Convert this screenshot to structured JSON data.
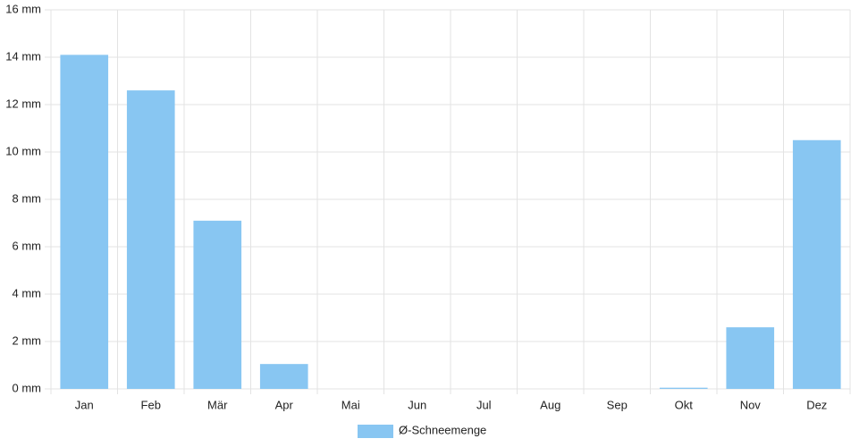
{
  "chart_data": {
    "type": "bar",
    "categories": [
      "Jan",
      "Feb",
      "Mär",
      "Apr",
      "Mai",
      "Jun",
      "Jul",
      "Aug",
      "Sep",
      "Okt",
      "Nov",
      "Dez"
    ],
    "series": [
      {
        "name": "Ø-Schneemenge",
        "color": "#88c6f2",
        "values": [
          14.1,
          12.6,
          7.1,
          1.05,
          0,
          0,
          0,
          0,
          0,
          0.05,
          2.6,
          10.5
        ]
      }
    ],
    "ylim": [
      0,
      16
    ],
    "yticks": [
      {
        "value": 0,
        "label": "0 mm"
      },
      {
        "value": 2,
        "label": "2 mm"
      },
      {
        "value": 4,
        "label": "4 mm"
      },
      {
        "value": 6,
        "label": "6 mm"
      },
      {
        "value": 8,
        "label": "8 mm"
      },
      {
        "value": 10,
        "label": "10 mm"
      },
      {
        "value": 12,
        "label": "12 mm"
      },
      {
        "value": 14,
        "label": "14 mm"
      },
      {
        "value": 16,
        "label": "16 mm"
      }
    ],
    "grid": true,
    "legend": "bottom"
  }
}
